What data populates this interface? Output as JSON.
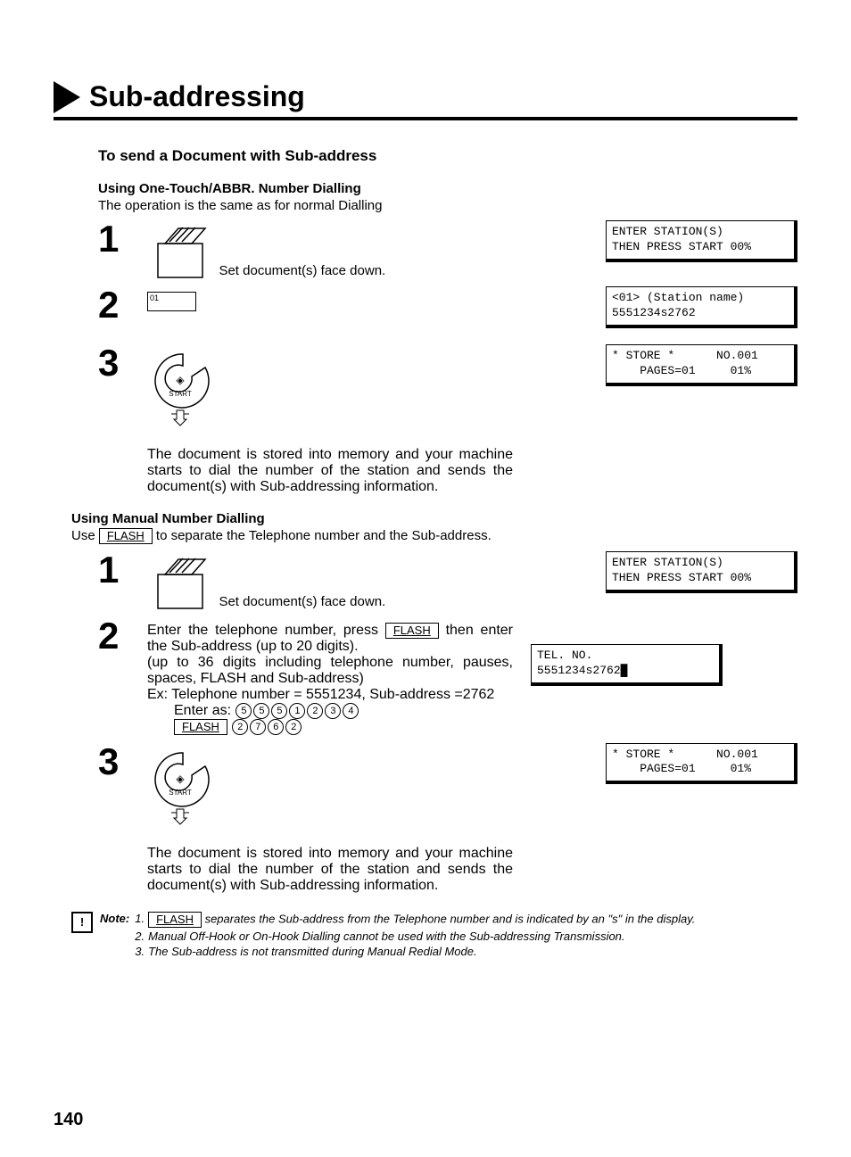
{
  "title": "Sub-addressing",
  "section1_heading": "To send a Document with Sub-address",
  "method1_heading": "Using One-Touch/ABBR. Number Dialling",
  "method1_intro": "The operation is the same as for normal Dialling",
  "step1_num": "1",
  "step1_text": "Set document(s) face down.",
  "key_01_label": "01",
  "step2_num": "2",
  "step3_num": "3",
  "start_label": "START",
  "step3_para": "The document is stored into memory and your machine starts to dial the number of the station and sends the document(s) with Sub-addressing information.",
  "lcd1_line1": "ENTER STATION(S)",
  "lcd1_line2": "THEN PRESS START 00%",
  "lcd2_line1": "<01> (Station name)",
  "lcd2_line2": "5551234s2762",
  "lcd3_line1": "* STORE *      NO.001",
  "lcd3_line2": "    PAGES=01     01%",
  "method2_heading": "Using Manual Number Dialling",
  "method2_intro_pre": "Use ",
  "method2_intro_post": " to separate the Telephone number and the Sub-address.",
  "flash_label": "FLASH",
  "m2_step1_num": "1",
  "m2_step1_text": "Set document(s) face down.",
  "m2_step2_num": "2",
  "m2_step2_text1_pre": "Enter the telephone number, press ",
  "m2_step2_text1_post": " then enter the Sub-address (up to 20 digits).",
  "m2_step2_text2": "(up to 36 digits including telephone number, pauses, spaces, FLASH and Sub-address)",
  "m2_step2_text3": "Ex: Telephone number = 5551234, Sub-address =2762",
  "m2_step2_enter_as": "Enter as: ",
  "digits_row1": [
    "5",
    "5",
    "5",
    "1",
    "2",
    "3",
    "4"
  ],
  "digits_row2": [
    "2",
    "7",
    "6",
    "2"
  ],
  "m2_step3_num": "3",
  "m2_step3_para": "The document is stored into memory and your machine starts to dial the number of the station and sends the document(s) with Sub-addressing information.",
  "m2_lcd1_line1": "ENTER STATION(S)",
  "m2_lcd1_line2": "THEN PRESS START 00%",
  "m2_lcd2_line1": "TEL. NO.",
  "m2_lcd2_line2": "5551234s2762",
  "m2_lcd3_line1": "* STORE *      NO.001",
  "m2_lcd3_line2": "    PAGES=01     01%",
  "note_label": "Note:",
  "note1_num": "1.",
  "note1_pre": "",
  "note1_post": " separates the Sub-address from the Telephone number and is indicated by an \"s\" in the display.",
  "note2_num": "2.",
  "note2_text": "Manual Off-Hook or On-Hook Dialling cannot be used with the Sub-addressing Transmission.",
  "note3_num": "3.",
  "note3_text": "The Sub-address is not transmitted during Manual Redial Mode.",
  "page_number": "140"
}
